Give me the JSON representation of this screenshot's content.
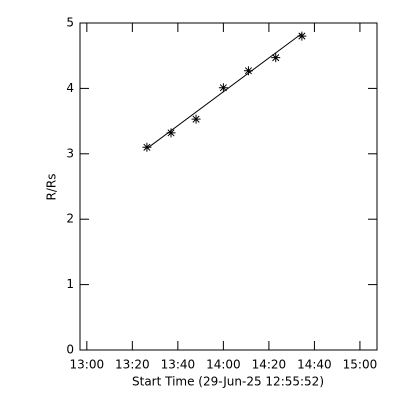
{
  "chart_data": {
    "type": "scatter",
    "xlabel": "Start Time (29-Jun-25 12:55:52)",
    "ylabel": "R/Rs",
    "x": [
      26.4,
      37,
      48,
      60,
      71,
      83,
      94.5
    ],
    "values": [
      3.1,
      3.32,
      3.53,
      4.01,
      4.27,
      4.47,
      4.8
    ],
    "color": "#000000",
    "fit": {
      "x": [
        26.4,
        94.5
      ],
      "values": [
        3.08,
        4.84
      ]
    },
    "xlim": [
      -3,
      127.5
    ],
    "xticks": [
      {
        "value": 0,
        "label": "13:00"
      },
      {
        "value": 20,
        "label": "13:20"
      },
      {
        "value": 40,
        "label": "13:40"
      },
      {
        "value": 60,
        "label": "14:00"
      },
      {
        "value": 80,
        "label": "14:20"
      },
      {
        "value": 100,
        "label": "14:40"
      },
      {
        "value": 120,
        "label": "15:00"
      }
    ],
    "ylim": [
      0,
      5
    ],
    "yticks": [
      0,
      1,
      2,
      3,
      4,
      5
    ]
  }
}
